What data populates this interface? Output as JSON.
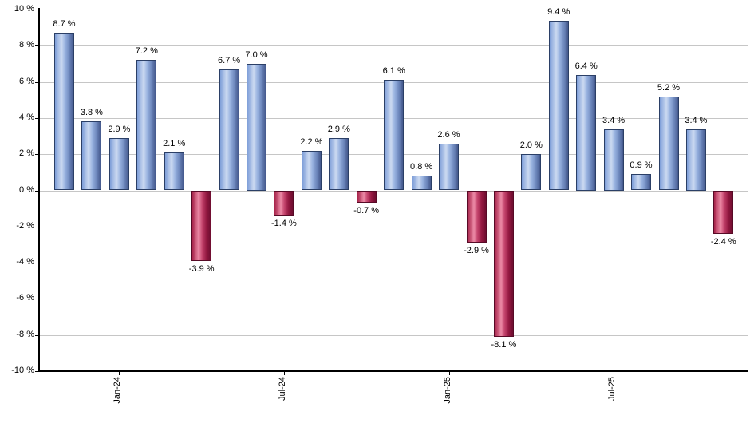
{
  "chart_data": {
    "type": "bar",
    "title": "",
    "xlabel": "",
    "ylabel": "",
    "values": [
      8.7,
      3.8,
      2.9,
      7.2,
      2.1,
      -3.9,
      6.7,
      7.0,
      -1.4,
      2.2,
      2.9,
      -0.7,
      6.1,
      0.8,
      2.6,
      -2.9,
      -8.1,
      2.0,
      9.4,
      6.4,
      3.4,
      0.9,
      5.2,
      3.4,
      -2.4
    ],
    "bar_labels": [
      "8.7 %",
      "3.8 %",
      "2.9 %",
      "7.2 %",
      "2.1 %",
      "-3.9 %",
      "6.7 %",
      "7.0 %",
      "-1.4 %",
      "2.2 %",
      "2.9 %",
      "-0.7 %",
      "6.1 %",
      "0.8 %",
      "2.6 %",
      "-2.9 %",
      "-8.1 %",
      "2.0 %",
      "9.4 %",
      "6.4 %",
      "3.4 %",
      "0.9 %",
      "5.2 %",
      "3.4 %",
      "-2.4 %"
    ],
    "x_ticks": [
      {
        "label": "Jan-24",
        "index": 2
      },
      {
        "label": "Jul-24",
        "index": 8
      },
      {
        "label": "Jan-25",
        "index": 14
      },
      {
        "label": "Jul-25",
        "index": 20
      }
    ],
    "y_ticks": [
      "10 %",
      "8 %",
      "6 %",
      "4 %",
      "2 %",
      "0 %",
      "-2 %",
      "-4 %",
      "-6 %",
      "-8 %",
      "-10 %"
    ],
    "y_tick_values": [
      10,
      8,
      6,
      4,
      2,
      0,
      -2,
      -4,
      -6,
      -8,
      -10
    ],
    "ylim": [
      -10,
      10
    ],
    "grid": "horizontal",
    "legend": "none",
    "colors": {
      "positive_bar_gradient": [
        "#7E9ED8",
        "#CCDAF1",
        "#98B2E0",
        "#6D87BC",
        "#44588C"
      ],
      "positive_bar_border": "#2B3F66",
      "negative_bar_gradient": [
        "#A52148",
        "#EC8AA6",
        "#C2416A",
        "#91173F",
        "#6E0D30"
      ],
      "negative_bar_border": "#570A26",
      "gridline": "#C6C6C6",
      "axis": "#000000",
      "text": "#000000",
      "background": "#FFFFFF"
    }
  }
}
